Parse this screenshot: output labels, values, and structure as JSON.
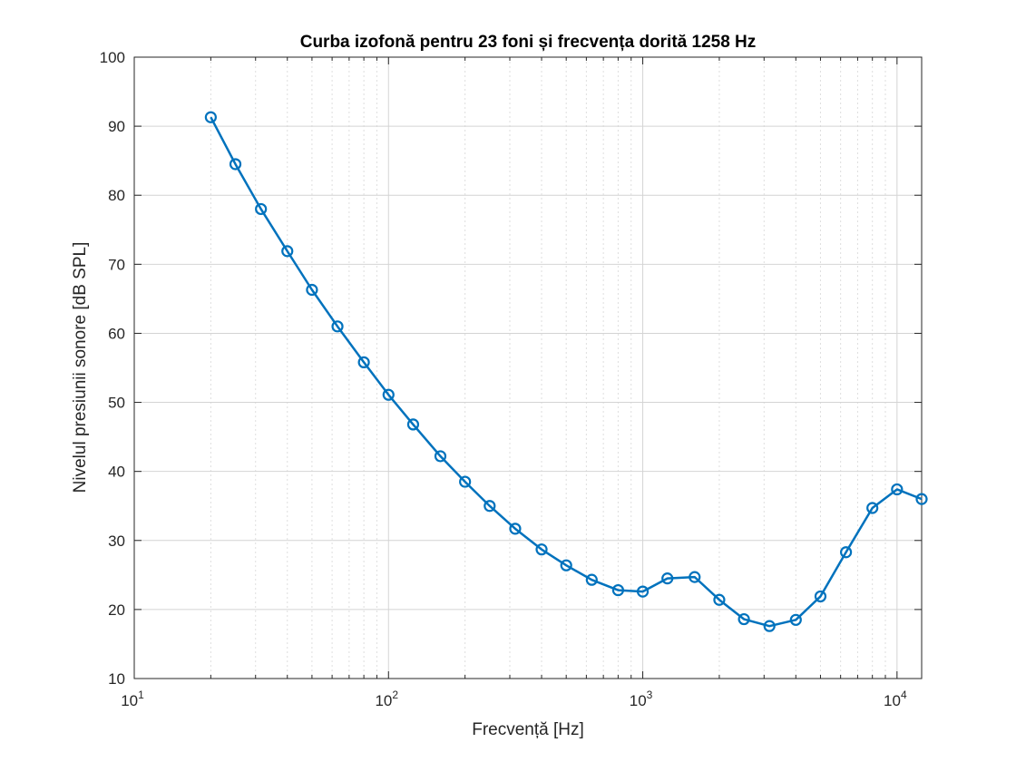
{
  "chart_data": {
    "type": "line",
    "title": "Curba izofonă pentru 23 foni și frecvența dorită 1258 Hz",
    "xlabel": "Frecvență [Hz]",
    "ylabel": "Nivelul presiunii sonore [dB SPL]",
    "xscale": "log",
    "xlim": [
      10,
      12500
    ],
    "ylim": [
      10,
      100
    ],
    "grid": true,
    "legend": "none",
    "x_ticks": [
      {
        "value": 10,
        "base": "10",
        "exp": "1"
      },
      {
        "value": 100,
        "base": "10",
        "exp": "2"
      },
      {
        "value": 1000,
        "base": "10",
        "exp": "3"
      },
      {
        "value": 10000,
        "base": "10",
        "exp": "4"
      }
    ],
    "y_ticks": [
      "10",
      "20",
      "30",
      "40",
      "50",
      "60",
      "70",
      "80",
      "90",
      "100"
    ],
    "series": [
      {
        "color": "#0072BD",
        "marker": "circle",
        "x": [
          20,
          25,
          31.5,
          40,
          50,
          63,
          80,
          100,
          125,
          160,
          200,
          250,
          315,
          400,
          500,
          630,
          800,
          1000,
          1250,
          1600,
          2000,
          2500,
          3150,
          4000,
          5000,
          6300,
          8000,
          10000,
          12500
        ],
        "y": [
          91.3,
          84.5,
          78.0,
          71.9,
          66.3,
          61.0,
          55.8,
          51.1,
          46.8,
          42.2,
          38.5,
          35.0,
          31.7,
          28.7,
          26.4,
          24.3,
          22.8,
          22.6,
          24.5,
          24.7,
          21.4,
          18.6,
          17.6,
          18.5,
          21.9,
          28.3,
          34.7,
          37.4,
          36.0
        ]
      }
    ]
  }
}
